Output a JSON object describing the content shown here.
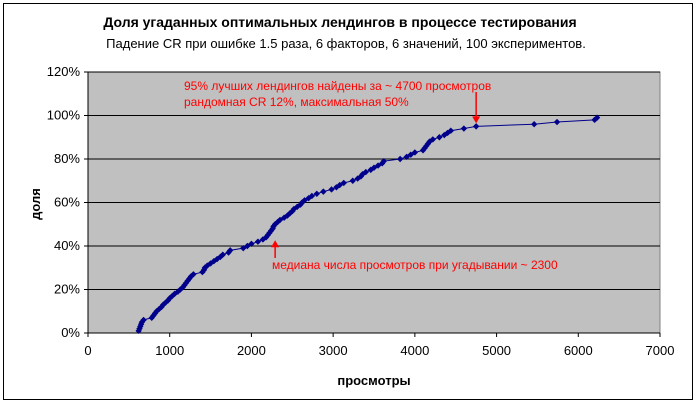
{
  "chart_data": {
    "type": "line",
    "title": "Доля угаданных оптимальных лендингов в процессе тестирования",
    "subtitle": "Падение CR при ошибке 1.5 раза, 6 факторов, 6 значений, 100 экспериментов.",
    "xlabel": "просмотры",
    "ylabel": "доля",
    "xlim": [
      0,
      7000
    ],
    "ylim": [
      0,
      1.2
    ],
    "x_ticks": [
      "0",
      "1000",
      "2000",
      "3000",
      "4000",
      "5000",
      "6000",
      "7000"
    ],
    "y_ticks": [
      "0%",
      "20%",
      "40%",
      "60%",
      "80%",
      "100%",
      "120%"
    ],
    "grid": "horizontal",
    "background": "#c0c0c0",
    "series_color": "#00008b",
    "annotations": [
      {
        "text": "95% лучших лендингов найдены за ~ 4700 просмотров",
        "x": 4750,
        "y": 0.95,
        "color": "#ff0000"
      },
      {
        "text": "рандомная CR 12%, максимальная 50%",
        "color": "#ff0000"
      },
      {
        "text": "медиана числа просмотров при угадывании ~ 2300",
        "x": 2290,
        "y": 0.5,
        "color": "#ff0000"
      }
    ],
    "series": [
      {
        "points": [
          [
            620,
            0.01
          ],
          [
            630,
            0.02
          ],
          [
            640,
            0.03
          ],
          [
            650,
            0.04
          ],
          [
            660,
            0.05
          ],
          [
            680,
            0.06
          ],
          [
            780,
            0.07
          ],
          [
            800,
            0.08
          ],
          [
            820,
            0.09
          ],
          [
            840,
            0.1
          ],
          [
            870,
            0.11
          ],
          [
            900,
            0.12
          ],
          [
            920,
            0.13
          ],
          [
            950,
            0.14
          ],
          [
            980,
            0.15
          ],
          [
            1000,
            0.16
          ],
          [
            1030,
            0.17
          ],
          [
            1060,
            0.18
          ],
          [
            1100,
            0.19
          ],
          [
            1130,
            0.2
          ],
          [
            1160,
            0.21
          ],
          [
            1180,
            0.22
          ],
          [
            1200,
            0.23
          ],
          [
            1220,
            0.24
          ],
          [
            1240,
            0.25
          ],
          [
            1260,
            0.26
          ],
          [
            1290,
            0.27
          ],
          [
            1400,
            0.28
          ],
          [
            1420,
            0.29
          ],
          [
            1430,
            0.3
          ],
          [
            1460,
            0.31
          ],
          [
            1500,
            0.32
          ],
          [
            1540,
            0.33
          ],
          [
            1580,
            0.34
          ],
          [
            1620,
            0.35
          ],
          [
            1650,
            0.36
          ],
          [
            1720,
            0.37
          ],
          [
            1740,
            0.38
          ],
          [
            1900,
            0.39
          ],
          [
            1950,
            0.4
          ],
          [
            2000,
            0.41
          ],
          [
            2080,
            0.42
          ],
          [
            2140,
            0.43
          ],
          [
            2180,
            0.44
          ],
          [
            2200,
            0.45
          ],
          [
            2220,
            0.46
          ],
          [
            2240,
            0.47
          ],
          [
            2260,
            0.48
          ],
          [
            2270,
            0.49
          ],
          [
            2290,
            0.5
          ],
          [
            2320,
            0.51
          ],
          [
            2350,
            0.52
          ],
          [
            2400,
            0.53
          ],
          [
            2440,
            0.54
          ],
          [
            2470,
            0.55
          ],
          [
            2500,
            0.56
          ],
          [
            2520,
            0.57
          ],
          [
            2560,
            0.58
          ],
          [
            2600,
            0.59
          ],
          [
            2620,
            0.6
          ],
          [
            2650,
            0.61
          ],
          [
            2700,
            0.62
          ],
          [
            2740,
            0.63
          ],
          [
            2800,
            0.64
          ],
          [
            2880,
            0.65
          ],
          [
            2980,
            0.66
          ],
          [
            3040,
            0.67
          ],
          [
            3080,
            0.68
          ],
          [
            3130,
            0.69
          ],
          [
            3240,
            0.7
          ],
          [
            3300,
            0.71
          ],
          [
            3340,
            0.72
          ],
          [
            3360,
            0.73
          ],
          [
            3400,
            0.74
          ],
          [
            3460,
            0.75
          ],
          [
            3500,
            0.76
          ],
          [
            3550,
            0.77
          ],
          [
            3600,
            0.78
          ],
          [
            3620,
            0.79
          ],
          [
            3820,
            0.8
          ],
          [
            3900,
            0.81
          ],
          [
            3950,
            0.82
          ],
          [
            4000,
            0.83
          ],
          [
            4100,
            0.84
          ],
          [
            4120,
            0.85
          ],
          [
            4140,
            0.86
          ],
          [
            4160,
            0.87
          ],
          [
            4180,
            0.88
          ],
          [
            4220,
            0.89
          ],
          [
            4300,
            0.9
          ],
          [
            4360,
            0.91
          ],
          [
            4400,
            0.92
          ],
          [
            4440,
            0.93
          ],
          [
            4600,
            0.94
          ],
          [
            4750,
            0.95
          ],
          [
            5460,
            0.96
          ],
          [
            5740,
            0.97
          ],
          [
            6200,
            0.98
          ],
          [
            6230,
            0.99
          ]
        ]
      }
    ]
  }
}
